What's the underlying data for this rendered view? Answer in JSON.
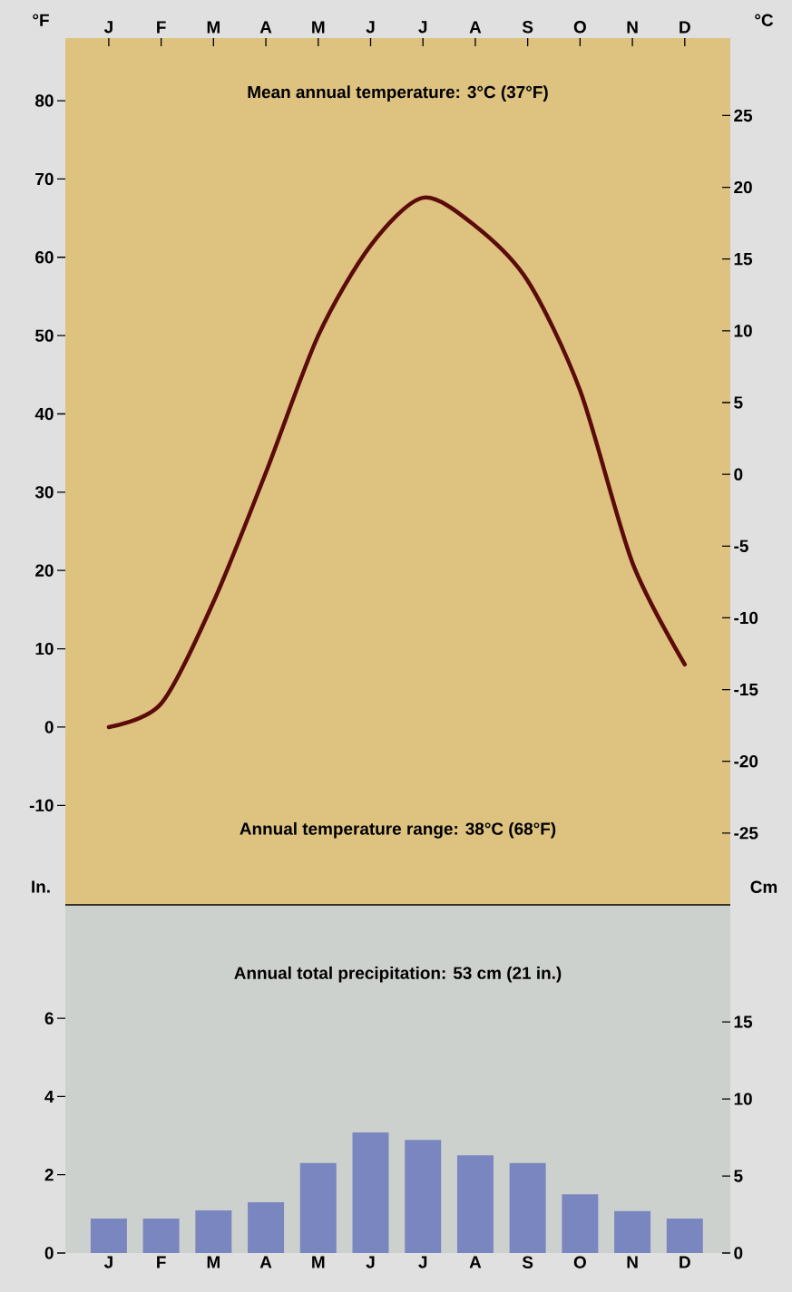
{
  "chart_data": [
    {
      "type": "line",
      "categories": [
        "J",
        "F",
        "M",
        "A",
        "M",
        "J",
        "J",
        "A",
        "S",
        "O",
        "N",
        "D"
      ],
      "series": [
        {
          "color": "#5c0b0b",
          "values": [
            0,
            3,
            16,
            32.5,
            50,
            61.5,
            67.6,
            64,
            57,
            43,
            21,
            8
          ]
        }
      ],
      "ylim": [
        -22.7,
        88
      ],
      "yticks": [
        -10,
        0,
        10,
        20,
        30,
        40,
        50,
        60,
        70,
        80
      ],
      "y2lim": [
        -30,
        30.4
      ],
      "y2ticks": [
        -25,
        -20,
        -15,
        -10,
        -5,
        0,
        5,
        10,
        15,
        20,
        25
      ],
      "ylabel": "°F",
      "y2label": "°C",
      "marker": "none",
      "line_style": "solid",
      "annotations": [
        "Mean annual temperature: 3°C (37°F)",
        "Annual temperature range: 38°C (68°F)"
      ]
    },
    {
      "type": "bar",
      "categories": [
        "J",
        "F",
        "M",
        "A",
        "M",
        "J",
        "J",
        "A",
        "S",
        "O",
        "N",
        "D"
      ],
      "values": [
        0.88,
        0.88,
        1.09,
        1.3,
        2.3,
        3.08,
        2.89,
        2.5,
        2.3,
        1.5,
        1.07,
        0.88
      ],
      "color": "#7a86c0",
      "ylim": [
        0,
        8.9
      ],
      "yticks": [
        0,
        2,
        4,
        6
      ],
      "y2lim": [
        0,
        22.6
      ],
      "y2ticks": [
        0,
        5,
        10,
        15
      ],
      "ylabel": "In.",
      "y2label": "Cm",
      "annotations": [
        "Annual total precipitation: 53 cm (21 in.)"
      ]
    }
  ]
}
